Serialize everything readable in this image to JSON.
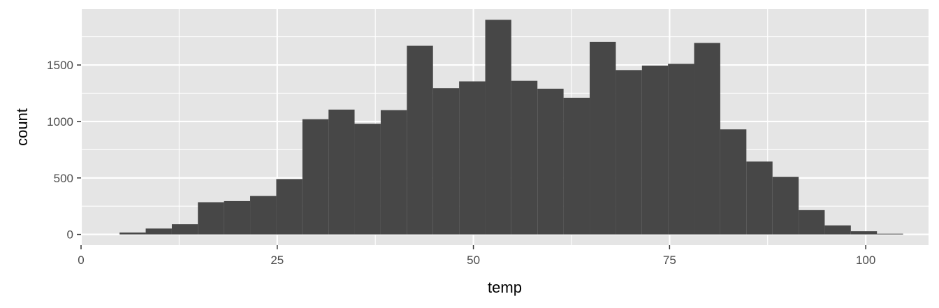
{
  "chart_data": {
    "type": "bar",
    "xlabel": "temp",
    "ylabel": "count",
    "xlim": [
      0,
      108
    ],
    "ylim": [
      -95,
      1995
    ],
    "x_ticks": [
      0,
      25,
      50,
      75,
      100
    ],
    "x_minor": [
      12.5,
      37.5,
      62.5,
      87.5
    ],
    "y_ticks": [
      0,
      500,
      1000,
      1500
    ],
    "y_minor": [
      250,
      750,
      1250,
      1750
    ],
    "grid": true,
    "colors": {
      "panel": "#e5e5e5",
      "grid": "#ffffff",
      "bar": "#474747"
    },
    "bins": [
      {
        "x0": 4.91,
        "x1": 8.24,
        "count": 17
      },
      {
        "x0": 8.24,
        "x1": 11.57,
        "count": 52
      },
      {
        "x0": 11.57,
        "x1": 14.89,
        "count": 90
      },
      {
        "x0": 14.89,
        "x1": 18.22,
        "count": 285
      },
      {
        "x0": 18.22,
        "x1": 21.55,
        "count": 295
      },
      {
        "x0": 21.55,
        "x1": 24.88,
        "count": 340
      },
      {
        "x0": 24.88,
        "x1": 28.21,
        "count": 490
      },
      {
        "x0": 28.21,
        "x1": 31.54,
        "count": 1020
      },
      {
        "x0": 31.54,
        "x1": 34.86,
        "count": 1105
      },
      {
        "x0": 34.86,
        "x1": 38.19,
        "count": 980
      },
      {
        "x0": 38.19,
        "x1": 41.52,
        "count": 1100
      },
      {
        "x0": 41.52,
        "x1": 44.85,
        "count": 1670
      },
      {
        "x0": 44.85,
        "x1": 48.18,
        "count": 1295
      },
      {
        "x0": 48.18,
        "x1": 51.51,
        "count": 1355
      },
      {
        "x0": 51.51,
        "x1": 54.83,
        "count": 1900
      },
      {
        "x0": 54.83,
        "x1": 58.16,
        "count": 1360
      },
      {
        "x0": 58.16,
        "x1": 61.49,
        "count": 1290
      },
      {
        "x0": 61.49,
        "x1": 64.82,
        "count": 1210
      },
      {
        "x0": 64.82,
        "x1": 68.15,
        "count": 1705
      },
      {
        "x0": 68.15,
        "x1": 71.48,
        "count": 1455
      },
      {
        "x0": 71.48,
        "x1": 74.8,
        "count": 1495
      },
      {
        "x0": 74.8,
        "x1": 78.13,
        "count": 1510
      },
      {
        "x0": 78.13,
        "x1": 81.46,
        "count": 1695
      },
      {
        "x0": 81.46,
        "x1": 84.79,
        "count": 930
      },
      {
        "x0": 84.79,
        "x1": 88.12,
        "count": 645
      },
      {
        "x0": 88.12,
        "x1": 91.45,
        "count": 510
      },
      {
        "x0": 91.45,
        "x1": 94.77,
        "count": 215
      },
      {
        "x0": 94.77,
        "x1": 98.1,
        "count": 80
      },
      {
        "x0": 98.1,
        "x1": 101.43,
        "count": 28
      },
      {
        "x0": 101.43,
        "x1": 104.76,
        "count": 6
      }
    ]
  }
}
